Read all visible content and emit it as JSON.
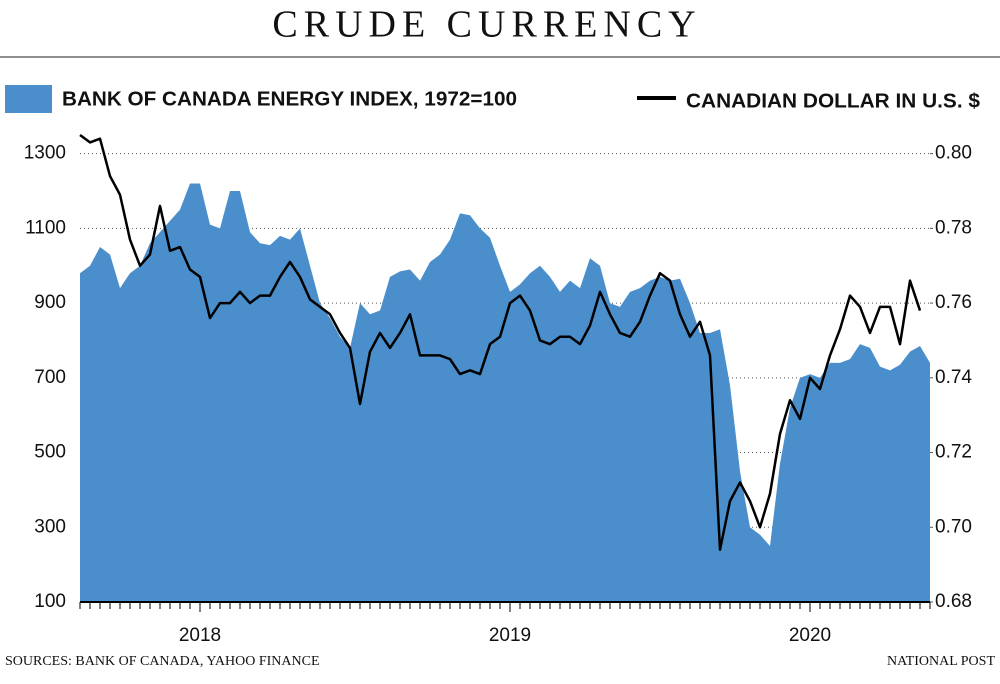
{
  "chart_data": {
    "type": "area",
    "title": "CRUDE CURRENCY",
    "source": "SOURCES: BANK OF CANADA, YAHOO FINANCE",
    "credit": "NATIONAL POST",
    "categories": [
      null,
      null,
      null,
      null,
      null,
      null,
      null,
      null,
      null,
      null,
      null,
      null,
      "2018",
      null,
      null,
      null,
      null,
      null,
      null,
      null,
      null,
      null,
      null,
      null,
      null,
      null,
      null,
      null,
      null,
      null,
      null,
      null,
      null,
      null,
      null,
      null,
      null,
      null,
      null,
      null,
      null,
      null,
      null,
      "2019",
      null,
      null,
      null,
      null,
      null,
      null,
      null,
      null,
      null,
      null,
      null,
      null,
      null,
      null,
      null,
      null,
      null,
      null,
      null,
      null,
      null,
      null,
      null,
      null,
      null,
      null,
      null,
      null,
      null,
      "2020",
      null,
      null,
      null,
      null,
      null,
      null,
      null,
      null,
      null,
      null,
      null,
      null
    ],
    "series": [
      {
        "name": "BANK OF CANADA ENERGY INDEX, 1972=100",
        "type": "area",
        "axis": "y",
        "color": "#4a8fcc",
        "values": [
          980,
          1000,
          1050,
          1030,
          940,
          980,
          1000,
          1060,
          1090,
          1120,
          1150,
          1220,
          1220,
          1110,
          1100,
          1200,
          1200,
          1090,
          1060,
          1055,
          1080,
          1070,
          1100,
          1000,
          900,
          860,
          810,
          780,
          900,
          870,
          880,
          970,
          985,
          990,
          960,
          1010,
          1030,
          1070,
          1140,
          1135,
          1100,
          1075,
          1000,
          930,
          950,
          980,
          1000,
          970,
          930,
          960,
          940,
          1020,
          1000,
          900,
          890,
          930,
          940,
          960,
          970,
          960,
          965,
          900,
          820,
          820,
          830,
          680,
          450,
          300,
          280,
          250,
          470,
          620,
          700,
          710,
          700,
          740,
          740,
          750,
          790,
          780,
          730,
          720,
          735,
          770,
          785,
          740
        ]
      },
      {
        "name": "CANADIAN DOLLAR IN U.S. $",
        "type": "line",
        "axis": "y2",
        "color": "#000000",
        "values": [
          0.805,
          0.803,
          0.804,
          0.794,
          0.789,
          0.777,
          0.77,
          0.773,
          0.786,
          0.774,
          0.775,
          0.769,
          0.767,
          0.756,
          0.76,
          0.76,
          0.763,
          0.76,
          0.762,
          0.762,
          0.767,
          0.771,
          0.767,
          0.761,
          0.759,
          0.757,
          0.752,
          0.748,
          0.733,
          0.747,
          0.752,
          0.748,
          0.752,
          0.757,
          0.746,
          0.746,
          0.746,
          0.745,
          0.741,
          0.742,
          0.741,
          0.749,
          0.751,
          0.76,
          0.762,
          0.758,
          0.75,
          0.749,
          0.751,
          0.751,
          0.749,
          0.754,
          0.763,
          0.757,
          0.752,
          0.751,
          0.755,
          0.762,
          0.768,
          0.766,
          0.757,
          0.751,
          0.755,
          0.746,
          0.694,
          0.707,
          0.712,
          0.707,
          0.7,
          0.709,
          0.725,
          0.734,
          0.729,
          0.74,
          0.737,
          0.746,
          0.753,
          0.762,
          0.759,
          0.752,
          0.759,
          0.759,
          0.749,
          0.766,
          0.758,
          null
        ]
      }
    ],
    "ylim": [
      100,
      1390
    ],
    "yticks": [
      100,
      300,
      500,
      700,
      900,
      1100,
      1300
    ],
    "y2lim": [
      0.68,
      0.809
    ],
    "y2ticks": [
      0.68,
      {
        "value": 0.7,
        "label": "0.70"
      },
      0.72,
      0.74,
      0.76,
      0.78,
      {
        "value": 0.8,
        "label": "0.80"
      }
    ],
    "grid": true
  }
}
